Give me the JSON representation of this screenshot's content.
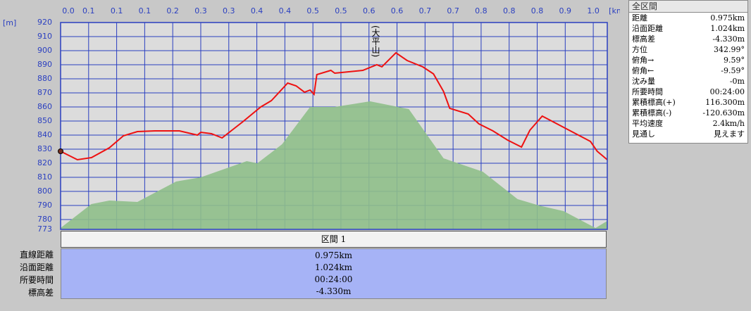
{
  "chart_data": {
    "type": "line",
    "x_unit": "[km]",
    "y_unit": "[m]",
    "annotation": "(大平山)",
    "xlim": [
      0,
      0.975
    ],
    "ylim": [
      773,
      920
    ],
    "grid": true,
    "xticks": [
      {
        "value": 0,
        "label": "0.0"
      },
      {
        "value": 0.05,
        "label": "0.1"
      },
      {
        "value": 0.1,
        "label": "0.1"
      },
      {
        "value": 0.15,
        "label": "0.1"
      },
      {
        "value": 0.2,
        "label": "0.2"
      },
      {
        "value": 0.25,
        "label": "0.3"
      },
      {
        "value": 0.3,
        "label": "0.3"
      },
      {
        "value": 0.35,
        "label": "0.4"
      },
      {
        "value": 0.4,
        "label": "0.4"
      },
      {
        "value": 0.45,
        "label": "0.5"
      },
      {
        "value": 0.5,
        "label": "0.5"
      },
      {
        "value": 0.55,
        "label": "0.6"
      },
      {
        "value": 0.6,
        "label": "0.6"
      },
      {
        "value": 0.65,
        "label": "0.7"
      },
      {
        "value": 0.7,
        "label": "0.7"
      },
      {
        "value": 0.75,
        "label": "0.8"
      },
      {
        "value": 0.8,
        "label": "0.8"
      },
      {
        "value": 0.85,
        "label": "0.8"
      },
      {
        "value": 0.9,
        "label": "0.9"
      },
      {
        "value": 0.95,
        "label": "1.0"
      }
    ],
    "yticks": [
      920,
      910,
      900,
      890,
      880,
      870,
      860,
      850,
      840,
      830,
      820,
      810,
      800,
      790,
      780,
      773
    ],
    "terrain": {
      "color": "#8fbf8a",
      "x": [
        0,
        0.055,
        0.087,
        0.137,
        0.206,
        0.25,
        0.332,
        0.351,
        0.395,
        0.445,
        0.489,
        0.552,
        0.621,
        0.683,
        0.753,
        0.815,
        0.853,
        0.897,
        0.954,
        0.975
      ],
      "values": [
        774,
        791,
        793.5,
        792.5,
        807,
        810,
        821.5,
        820,
        833.5,
        860,
        860,
        864,
        858.5,
        823.5,
        814,
        794.5,
        790,
        786,
        774,
        779
      ]
    },
    "route": {
      "color": "#ee1111",
      "x": [
        0,
        0.03,
        0.055,
        0.087,
        0.112,
        0.137,
        0.168,
        0.212,
        0.244,
        0.25,
        0.269,
        0.288,
        0.325,
        0.357,
        0.376,
        0.405,
        0.42,
        0.435,
        0.445,
        0.452,
        0.457,
        0.482,
        0.489,
        0.539,
        0.564,
        0.573,
        0.598,
        0.618,
        0.646,
        0.665,
        0.683,
        0.694,
        0.727,
        0.746,
        0.771,
        0.797,
        0.822,
        0.837,
        0.859,
        0.945,
        0.957,
        0.975
      ],
      "values": [
        828.5,
        822.5,
        824,
        831,
        839.5,
        842.5,
        843,
        843,
        840,
        842,
        841,
        838,
        849.5,
        860,
        864.5,
        877,
        875,
        870.5,
        872,
        869,
        883,
        886,
        884,
        886,
        890,
        888.5,
        898.5,
        893,
        888.5,
        883.5,
        871,
        859,
        855,
        848,
        843,
        836.5,
        831.5,
        843.5,
        853.5,
        835.5,
        828.5,
        822.5
      ]
    }
  },
  "summary": {
    "title": "全区間",
    "rows": [
      [
        "距離",
        "0.975km"
      ],
      [
        "沿面距離",
        "1.024km"
      ],
      [
        "標高差",
        "-4.330m"
      ],
      [
        "方位",
        "342.99°"
      ],
      [
        "俯角→",
        "9.59°"
      ],
      [
        "俯角←",
        "-9.59°"
      ],
      [
        "沈み量",
        "-0m"
      ],
      [
        "所要時間",
        "00:24:00"
      ],
      [
        "累積標高(+)",
        "116.300m"
      ],
      [
        "累積標高(-)",
        "-120.630m"
      ],
      [
        "平均速度",
        "2.4km/h"
      ],
      [
        "見通し",
        "見えます"
      ]
    ]
  },
  "section": {
    "title": "区間 1",
    "rows": [
      [
        "直線距離",
        "0.975km"
      ],
      [
        "沿面距離",
        "1.024km"
      ],
      [
        "所要時間",
        "00:24:00"
      ],
      [
        "標高差",
        "-4.330m"
      ]
    ]
  }
}
